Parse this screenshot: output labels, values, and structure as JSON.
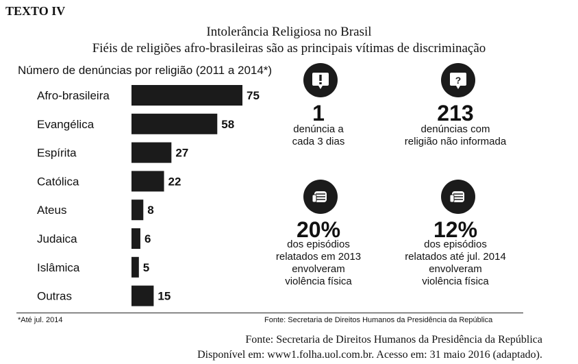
{
  "header": {
    "label": "TEXTO IV",
    "title": "Intolerância Religiosa no Brasil",
    "subtitle": "Fiéis de religiões afro-brasileiras são as principais vítimas de discriminação"
  },
  "chart_data": {
    "type": "bar",
    "orientation": "horizontal",
    "title": "Número de denúncias por religião (2011 a 2014*)",
    "categories": [
      "Afro-brasileira",
      "Evangélica",
      "Espírita",
      "Católica",
      "Ateus",
      "Judaica",
      "Islâmica",
      "Outras"
    ],
    "values": [
      75,
      58,
      27,
      22,
      8,
      6,
      5,
      15
    ],
    "xlim": [
      0,
      75
    ],
    "bar_color": "#1b1b1b",
    "grid": false,
    "legend": "none"
  },
  "stats": [
    {
      "icon": "exclamation-bubble-icon",
      "value": "1",
      "text": "denúncia a\ncada 3 dias"
    },
    {
      "icon": "question-bubble-icon",
      "value": "213",
      "text": "denúncias com\nreligião não informada"
    },
    {
      "icon": "fist-icon",
      "value": "20%",
      "text": "dos episódios\nrelatados em 2013\nenvolveram\nviolência física"
    },
    {
      "icon": "fist-icon",
      "value": "12%",
      "text": "dos episódios\nrelatados até jul. 2014\nenvolveram\nviolência física"
    }
  ],
  "footer": {
    "footnote": "*Até jul. 2014",
    "inner_source": "Fonte: Secretaria de Direitos Humanos da Presidência da República",
    "source": "Fonte: Secretaria de Direitos Humanos da Presidência da República",
    "access": "Disponível em: www1.folha.uol.com.br. Acesso em: 31 maio 2016 (adaptado)."
  }
}
